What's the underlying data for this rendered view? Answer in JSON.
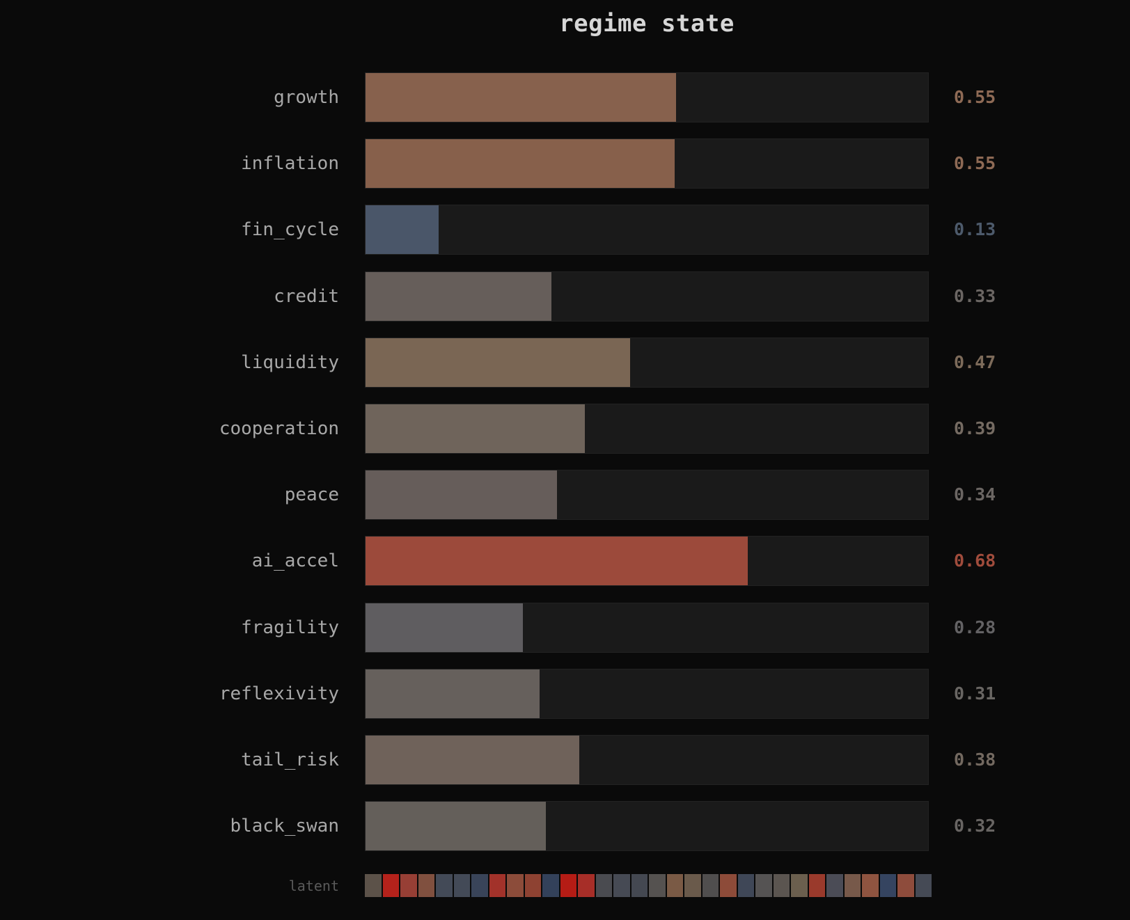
{
  "chart_data": {
    "type": "bar",
    "orientation": "horizontal",
    "title": "regime state",
    "xlim": [
      0,
      1
    ],
    "categories": [
      "growth",
      "inflation",
      "fin_cycle",
      "credit",
      "liquidity",
      "cooperation",
      "peace",
      "ai_accel",
      "fragility",
      "reflexivity",
      "tail_risk",
      "black_swan"
    ],
    "values": [
      0.55,
      0.55,
      0.13,
      0.33,
      0.47,
      0.39,
      0.34,
      0.68,
      0.28,
      0.31,
      0.38,
      0.32
    ],
    "value_labels": [
      "0.55",
      "0.55",
      "0.13",
      "0.33",
      "0.47",
      "0.39",
      "0.34",
      "0.68",
      "0.28",
      "0.31",
      "0.38",
      "0.32"
    ],
    "bar_colors": [
      "#87614d",
      "#87604b",
      "#4a5669",
      "#665e5a",
      "#7a6654",
      "#6f645b",
      "#665d5a",
      "#9c4a3b",
      "#5f5d60",
      "#66605c",
      "#6f625a",
      "#645f5a"
    ],
    "value_colors": [
      "#8e6a55",
      "#8e6a55",
      "#4d5a6b",
      "#6b6663",
      "#7d6b5a",
      "#756b62",
      "#6b6663",
      "#a04c3c",
      "#636264",
      "#696663",
      "#736960",
      "#686563"
    ],
    "latent": {
      "label": "latent",
      "cells": [
        "#5c5249",
        "#b5221b",
        "#973f35",
        "#80503f",
        "#434a57",
        "#434a57",
        "#394459",
        "#a2322a",
        "#8c4c3a",
        "#8e4232",
        "#33415a",
        "#b51c15",
        "#a72e28",
        "#4a4b50",
        "#464a54",
        "#444851",
        "#555250",
        "#7a5a45",
        "#6a5a4b",
        "#504e4e",
        "#8d4b39",
        "#3f4757",
        "#555353",
        "#5b5550",
        "#6b5f4e",
        "#9a3a2c",
        "#4b4c56",
        "#77594a",
        "#8f5440",
        "#354460",
        "#8e4c3c",
        "#454a55"
      ]
    }
  }
}
